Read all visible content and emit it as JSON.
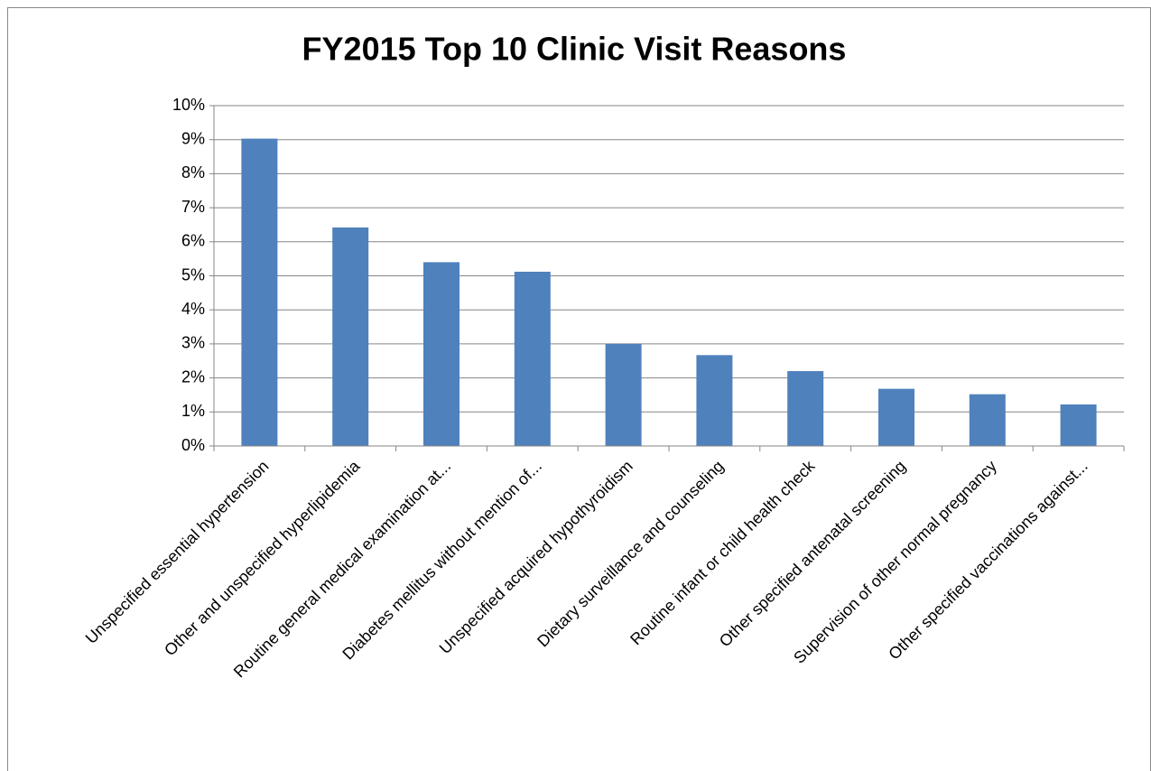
{
  "chart_data": {
    "type": "bar",
    "title": "FY2015 Top 10 Clinic Visit Reasons",
    "categories": [
      "Unspecified essential hypertension",
      "Other and unspecified hyperlipidemia",
      "Routine general medical examination at...",
      "Diabetes mellitus without mention of...",
      "Unspecified acquired hypothyroidism",
      "Dietary surveillance and counseling",
      "Routine infant or child health check",
      "Other specified antenatal screening",
      "Supervision of other normal pregnancy",
      "Other specified vaccinations against..."
    ],
    "values": [
      9.03,
      6.42,
      5.4,
      5.12,
      3.0,
      2.67,
      2.2,
      1.68,
      1.52,
      1.22
    ],
    "color": "#4f81bd",
    "ylim": [
      0,
      10
    ],
    "yticks": [
      {
        "value": 0,
        "label": "0%"
      },
      {
        "value": 1,
        "label": "1%"
      },
      {
        "value": 2,
        "label": "2%"
      },
      {
        "value": 3,
        "label": "3%"
      },
      {
        "value": 4,
        "label": "4%"
      },
      {
        "value": 5,
        "label": "5%"
      },
      {
        "value": 6,
        "label": "6%"
      },
      {
        "value": 7,
        "label": "7%"
      },
      {
        "value": 8,
        "label": "8%"
      },
      {
        "value": 9,
        "label": "9%"
      },
      {
        "value": 10,
        "label": "10%"
      }
    ],
    "grid": true
  }
}
